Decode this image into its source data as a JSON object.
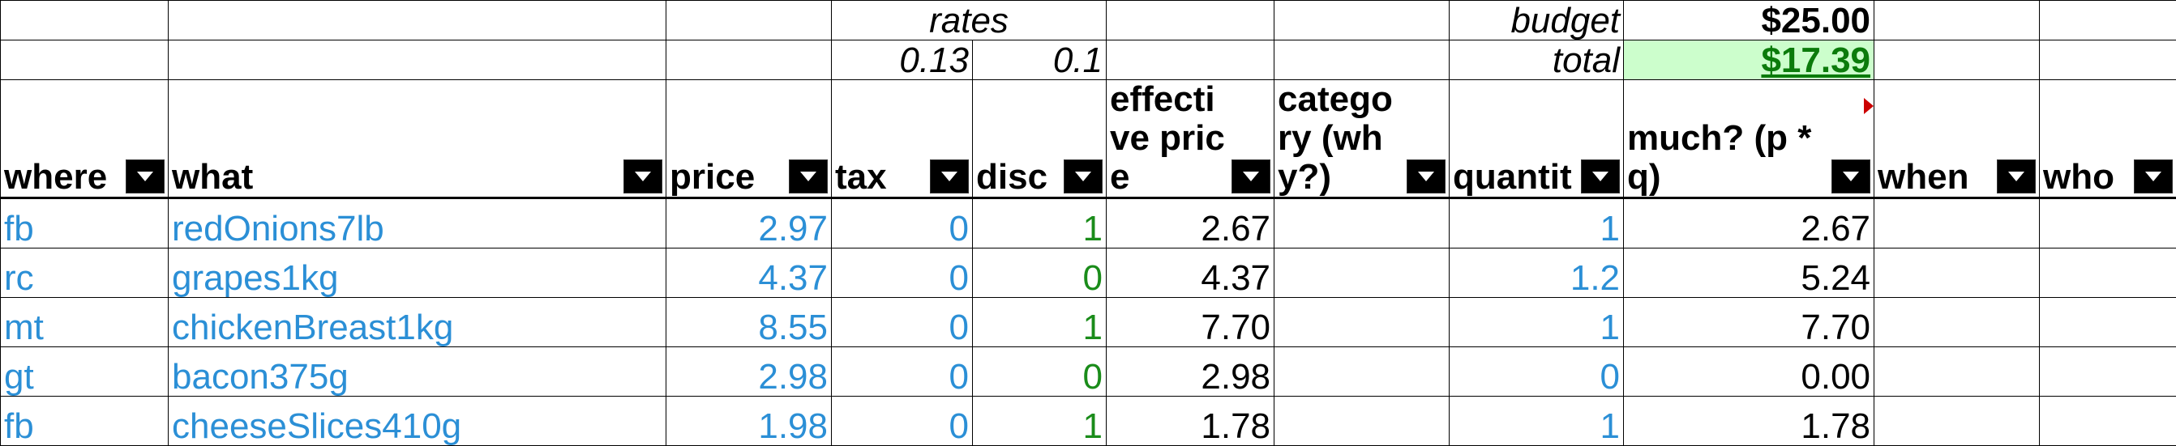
{
  "top": {
    "rates_label": "rates",
    "tax_rate": "0.13",
    "disc_rate": "0.1",
    "budget_label": "budget",
    "budget_value": "$25.00",
    "total_label": "total",
    "total_value": "$17.39"
  },
  "headers": [
    {
      "key": "where",
      "label": "where"
    },
    {
      "key": "what",
      "label": "what"
    },
    {
      "key": "price",
      "label": "price"
    },
    {
      "key": "tax",
      "label": "tax"
    },
    {
      "key": "disc",
      "label": "disc"
    },
    {
      "key": "effective_price",
      "label": "effective price"
    },
    {
      "key": "category",
      "label": "category (why?)"
    },
    {
      "key": "quantity",
      "label": "quantit"
    },
    {
      "key": "much",
      "label": "much? (p * q)"
    },
    {
      "key": "when",
      "label": "when"
    },
    {
      "key": "who",
      "label": "who"
    }
  ],
  "rows": [
    {
      "where": "fb",
      "what": "redOnions7lb",
      "price": "2.97",
      "tax": "0",
      "disc": "1",
      "effective": "2.67",
      "category": "",
      "quantity": "1",
      "much": "2.67",
      "when": "",
      "who": ""
    },
    {
      "where": "rc",
      "what": "grapes1kg",
      "price": "4.37",
      "tax": "0",
      "disc": "0",
      "effective": "4.37",
      "category": "",
      "quantity": "1.2",
      "much": "5.24",
      "when": "",
      "who": ""
    },
    {
      "where": "mt",
      "what": "chickenBreast1kg",
      "price": "8.55",
      "tax": "0",
      "disc": "1",
      "effective": "7.70",
      "category": "",
      "quantity": "1",
      "much": "7.70",
      "when": "",
      "who": ""
    },
    {
      "where": "gt",
      "what": "bacon375g",
      "price": "2.98",
      "tax": "0",
      "disc": "0",
      "effective": "2.98",
      "category": "",
      "quantity": "0",
      "much": "0.00",
      "when": "",
      "who": ""
    },
    {
      "where": "fb",
      "what": "cheeseSlices410g",
      "price": "1.98",
      "tax": "0",
      "disc": "1",
      "effective": "1.78",
      "category": "",
      "quantity": "1",
      "much": "1.78",
      "when": "",
      "who": ""
    }
  ],
  "colors": {
    "input_blue": "#2b8fd6",
    "disc_green": "#1a8c1a",
    "total_bg": "#ccfecc",
    "comment_red": "#cc0000"
  },
  "icons": {
    "filter": "filter-dropdown-icon",
    "comment": "comment-indicator-icon"
  }
}
